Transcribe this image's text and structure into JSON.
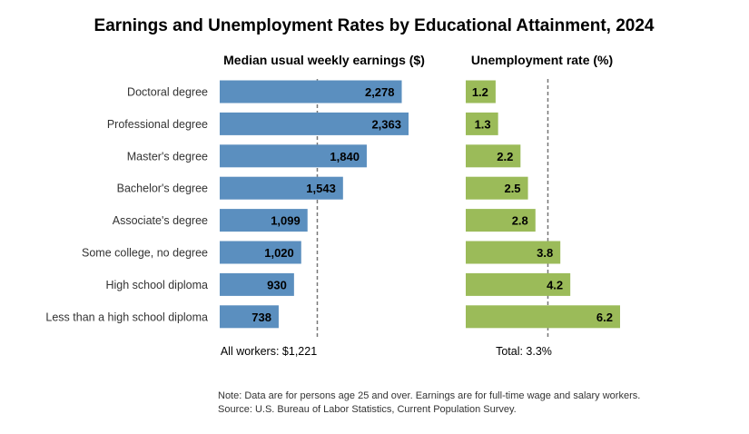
{
  "chart_data": [
    {
      "type": "bar",
      "orientation": "horizontal",
      "title": "Earnings and Unemployment Rates by Educational Attainment, 2024",
      "subtitle": "Median usual weekly earnings ($)",
      "categories": [
        "Doctoral degree",
        "Professional degree",
        "Master's degree",
        "Bachelor's degree",
        "Associate's degree",
        "Some college, no degree",
        "High school diploma",
        "Less than a high school diploma"
      ],
      "values": [
        2278,
        2363,
        1840,
        1543,
        1099,
        1020,
        930,
        738
      ],
      "labels": [
        "2,278",
        "2,363",
        "1,840",
        "1,543",
        "1,099",
        "1,020",
        "930",
        "738"
      ],
      "reference_value": 1221,
      "reference_label": "All workers: $1,221",
      "color": "#5b8fbf",
      "xlim": [
        0,
        2363
      ]
    },
    {
      "type": "bar",
      "orientation": "horizontal",
      "subtitle": "Unemployment rate (%)",
      "categories": [
        "Doctoral degree",
        "Professional degree",
        "Master's degree",
        "Bachelor's degree",
        "Associate's degree",
        "Some college, no degree",
        "High school diploma",
        "Less than a high school diploma"
      ],
      "values": [
        1.2,
        1.3,
        2.2,
        2.5,
        2.8,
        3.8,
        4.2,
        6.2
      ],
      "labels": [
        "1.2",
        "1.3",
        "2.2",
        "2.5",
        "2.8",
        "3.8",
        "4.2",
        "6.2"
      ],
      "reference_value": 3.3,
      "reference_label": "Total: 3.3%",
      "color": "#9bbb59",
      "xlim": [
        0,
        6.2
      ]
    }
  ],
  "notes": {
    "note": "Note: Data are for persons age 25 and over. Earnings are for full-time wage and salary workers.",
    "source": "Source: U.S. Bureau of Labor Statistics, Current Population Survey."
  }
}
